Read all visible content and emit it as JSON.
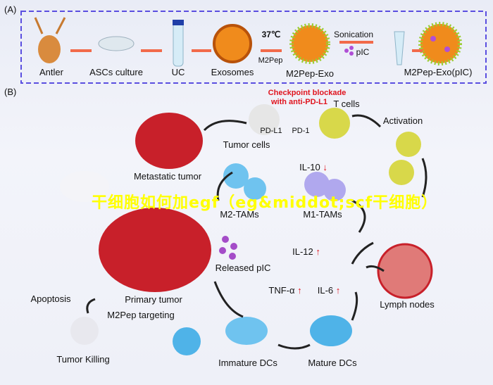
{
  "panel_a": {
    "label": "(A)",
    "steps": [
      "Antler",
      "ASCs culture",
      "UC",
      "Exosomes",
      "M2Pep-Exo",
      "M2Pep-Exo(pIC)"
    ],
    "temperature": "37℃",
    "peptide": "M2Pep",
    "sonication": "Sonication",
    "pic": "pIC"
  },
  "panel_b": {
    "label": "(B)",
    "checkpoint_line1": "Checkpoint blockade",
    "checkpoint_line2": "with anti-PD-L1",
    "t_cells": "T cells",
    "pd_l1": "PD-L1",
    "pd_1": "PD-1",
    "activation": "Activation",
    "tumor_cells": "Tumor cells",
    "metastatic_tumor": "Metastatic tumor",
    "il10": "IL-10",
    "m2_tams": "M2-TAMs",
    "m1_tams": "M1-TAMs",
    "il12": "IL-12",
    "released_pic": "Released pIC",
    "tnf": "TNF-α",
    "il6": "IL-6",
    "lymph_nodes": "Lymph nodes",
    "apoptosis": "Apoptosis",
    "primary_tumor": "Primary tumor",
    "m2pep_targeting": "M2Pep targeting",
    "tumor_killing": "Tumor Killing",
    "immature_dcs": "Immature DCs",
    "mature_dcs": "Mature DCs",
    "down_arrow": "↓",
    "up_arrow": "↑"
  },
  "watermark": "干细胞如何加egf（eg&middot;scf干细胞）",
  "colors": {
    "frame": "#5a4ee0",
    "arrow": "#f26a4a",
    "label_red": "#e0141e",
    "watermark": "#ffff00"
  }
}
